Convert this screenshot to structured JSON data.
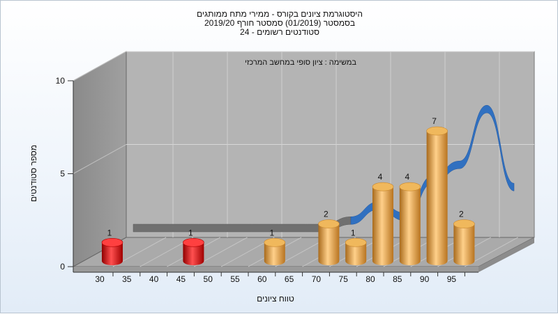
{
  "chart_data": {
    "type": "bar",
    "title_lines": [
      "היסטוגרמת ציונים בקורס - ממירי מתח ממותגים",
      "בסמסטר  (01/2019)  סמסטר חורף 2019/20",
      "סטודנטים רשומים - 24"
    ],
    "subtitle": "במשימה : ציון סופי במחשב המרכזי",
    "xlabel": "טווח ציונים",
    "ylabel": "מספר סטודנטים",
    "x_ticks": [
      "30",
      "35",
      "40",
      "45",
      "50",
      "55",
      "60",
      "65",
      "70",
      "75",
      "80",
      "85",
      "90",
      "95"
    ],
    "y_ticks": [
      "0",
      "5",
      "10"
    ],
    "ylim": [
      0,
      10
    ],
    "grid": true,
    "bars": [
      {
        "x": 30,
        "value": 1,
        "label": "1",
        "color": "#e01818"
      },
      {
        "x": 45,
        "value": 1,
        "label": "1",
        "color": "#e01818"
      },
      {
        "x": 60,
        "value": 1,
        "label": "1",
        "color": "#e8a040"
      },
      {
        "x": 70,
        "value": 2,
        "label": "2",
        "color": "#e8a040"
      },
      {
        "x": 75,
        "value": 1,
        "label": "1",
        "color": "#e8a040"
      },
      {
        "x": 80,
        "value": 4,
        "label": "4",
        "color": "#e8a040"
      },
      {
        "x": 85,
        "value": 4,
        "label": "4",
        "color": "#e8a040"
      },
      {
        "x": 90,
        "value": 7,
        "label": "7",
        "color": "#e8a040"
      },
      {
        "x": 95,
        "value": 2,
        "label": "2",
        "color": "#e8a040"
      }
    ],
    "trend_curve": {
      "x": [
        30,
        35,
        40,
        45,
        50,
        55,
        60,
        65,
        70,
        75,
        80,
        85,
        90,
        95,
        100
      ],
      "y": [
        0,
        0,
        0,
        0,
        0,
        0,
        0,
        0,
        0.4,
        1.2,
        0.6,
        2.6,
        3.4,
        6.4,
        2.2
      ],
      "color": "#3070c0"
    }
  }
}
